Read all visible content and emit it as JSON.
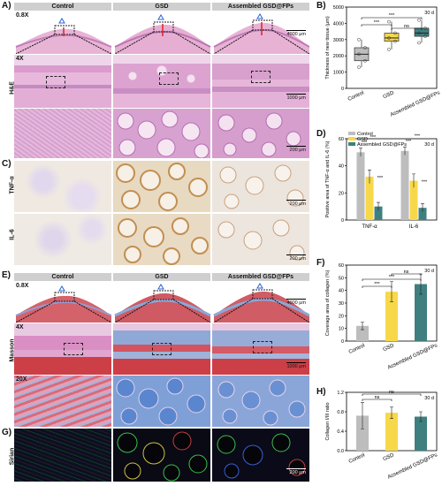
{
  "figure": {
    "columns": [
      "Control",
      "GSD",
      "Assembled GSD@FPs"
    ],
    "panel_letters": [
      "A)",
      "B)",
      "C)",
      "D)",
      "E)",
      "F)",
      "G)",
      "H)"
    ],
    "row_labels": {
      "he": "H&E",
      "tnf": "TNF-α",
      "il6": "IL-6",
      "masson": "Masson",
      "sirian": "Sirian"
    },
    "magnifications": {
      "low": "0.8X",
      "mid": "4X",
      "high": "20X"
    },
    "scale_bars": {
      "s4000": "4000 μm",
      "s1000": "1000 μm",
      "s200": "200 μm"
    },
    "colors": {
      "control": "#bdbdbd",
      "gsd": "#f7d84a",
      "assembled": "#3f7f7f",
      "he_pink": "#e6a9cf",
      "he_purple": "#b66fb5",
      "ihc_bg": "#ece6dc",
      "ihc_brown": "#c9965a",
      "masson_red": "#c8383d",
      "masson_blue": "#5f8fd0",
      "sirian_bg": "#0a0a14"
    }
  },
  "chart_data": [
    {
      "panel": "B",
      "type": "box",
      "annotation": "30 d",
      "ylabel": "Thickness of new tissue (μm)",
      "ylim": [
        0,
        5000
      ],
      "yticks": [
        0,
        1000,
        2000,
        3000,
        4000,
        5000
      ],
      "categories": [
        "Control",
        "GSD",
        "Assembled GSD@FPs"
      ],
      "series": [
        {
          "category": "Control",
          "min": 1300,
          "q1": 1700,
          "median": 2100,
          "q3": 2500,
          "max": 3000
        },
        {
          "category": "GSD",
          "min": 2400,
          "q1": 2900,
          "median": 3100,
          "q3": 3400,
          "max": 4100
        },
        {
          "category": "Assembled GSD@FPs",
          "min": 2800,
          "q1": 3200,
          "median": 3400,
          "q3": 3700,
          "max": 4200
        }
      ],
      "significance": [
        {
          "pair": [
            "Control",
            "GSD"
          ],
          "label": "***"
        },
        {
          "pair": [
            "Control",
            "Assembled GSD@FPs"
          ],
          "label": "***"
        },
        {
          "pair": [
            "GSD",
            "Assembled GSD@FPs"
          ],
          "label": "ns"
        }
      ]
    },
    {
      "panel": "D",
      "type": "bar",
      "annotation": "30 d",
      "ylabel": "Positive area of TNF-α and IL-6 (%)",
      "ylim": [
        0,
        60
      ],
      "yticks": [
        0,
        20,
        40,
        60
      ],
      "categories": [
        "TNF-α",
        "IL-6"
      ],
      "series": [
        {
          "name": "Control",
          "values": [
            50,
            51
          ],
          "errors": [
            3,
            3
          ]
        },
        {
          "name": "GSD",
          "values": [
            32,
            29
          ],
          "errors": [
            5,
            5
          ]
        },
        {
          "name": "Assembled GSD@FPs",
          "values": [
            10,
            9
          ],
          "errors": [
            3,
            3
          ]
        }
      ],
      "significance_labels": [
        "***",
        "***",
        "***",
        "***",
        "***",
        "***"
      ]
    },
    {
      "panel": "F",
      "type": "bar",
      "annotation": "30 d",
      "ylabel": "Coverage area of collagen (%)",
      "ylim": [
        0,
        60
      ],
      "yticks": [
        0,
        10,
        20,
        30,
        40,
        50,
        60
      ],
      "categories": [
        "Control",
        "GSD",
        "Assembled GSD@FPs"
      ],
      "values": [
        12,
        39,
        45
      ],
      "errors": [
        3,
        8,
        8
      ],
      "significance": [
        {
          "pair": [
            "Control",
            "GSD"
          ],
          "label": "***"
        },
        {
          "pair": [
            "Control",
            "Assembled GSD@FPs"
          ],
          "label": "***"
        },
        {
          "pair": [
            "GSD",
            "Assembled GSD@FPs"
          ],
          "label": "ns"
        }
      ]
    },
    {
      "panel": "H",
      "type": "bar",
      "annotation": "30 d",
      "ylabel": "Collagen I/III ratio",
      "ylim": [
        0.0,
        1.2
      ],
      "yticks": [
        0.0,
        0.4,
        0.8,
        1.2
      ],
      "categories": [
        "Control",
        "GSD",
        "Assembled GSD@FPs"
      ],
      "values": [
        0.72,
        0.78,
        0.7
      ],
      "errors": [
        0.27,
        0.12,
        0.1
      ],
      "significance": [
        {
          "pair": [
            "Control",
            "GSD"
          ],
          "label": "ns"
        },
        {
          "pair": [
            "Control",
            "Assembled GSD@FPs"
          ],
          "label": "ns"
        }
      ]
    }
  ]
}
